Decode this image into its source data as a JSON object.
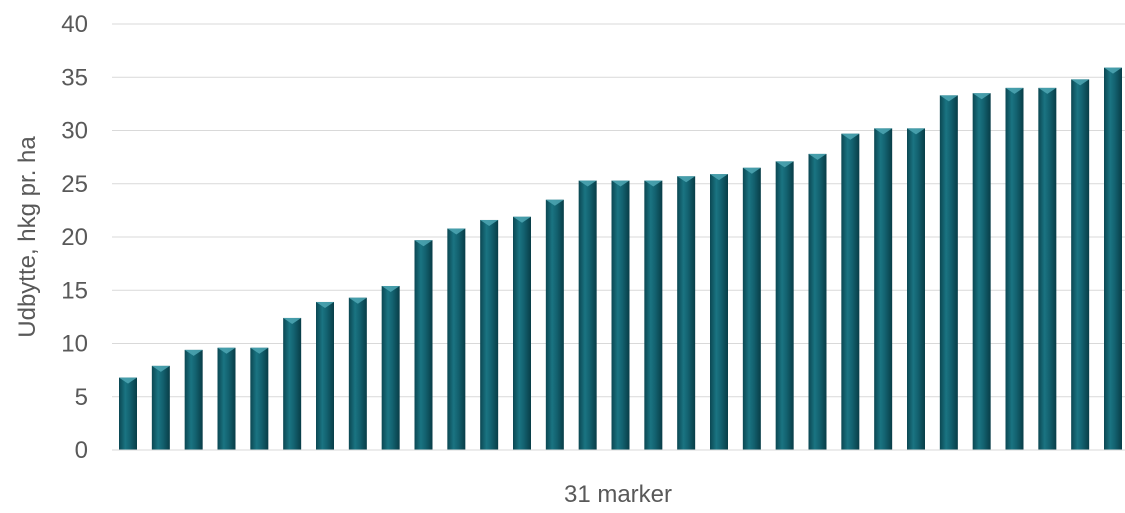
{
  "chart_data": {
    "type": "bar",
    "title": "",
    "xlabel": "31 marker",
    "ylabel": "Udbytte, hkg pr. ha",
    "ylim": [
      0,
      40
    ],
    "yticks": [
      0,
      5,
      10,
      15,
      20,
      25,
      30,
      35,
      40
    ],
    "grid": true,
    "legend": "none",
    "bar_color": "#0f5a68",
    "values": [
      6.8,
      7.9,
      9.4,
      9.6,
      9.6,
      12.4,
      13.9,
      14.3,
      15.4,
      19.7,
      20.8,
      21.6,
      21.9,
      23.5,
      25.3,
      25.3,
      25.3,
      25.7,
      25.9,
      26.5,
      27.1,
      27.8,
      29.7,
      30.2,
      30.2,
      33.3,
      33.5,
      34.0,
      34.0,
      34.8,
      35.9
    ]
  }
}
